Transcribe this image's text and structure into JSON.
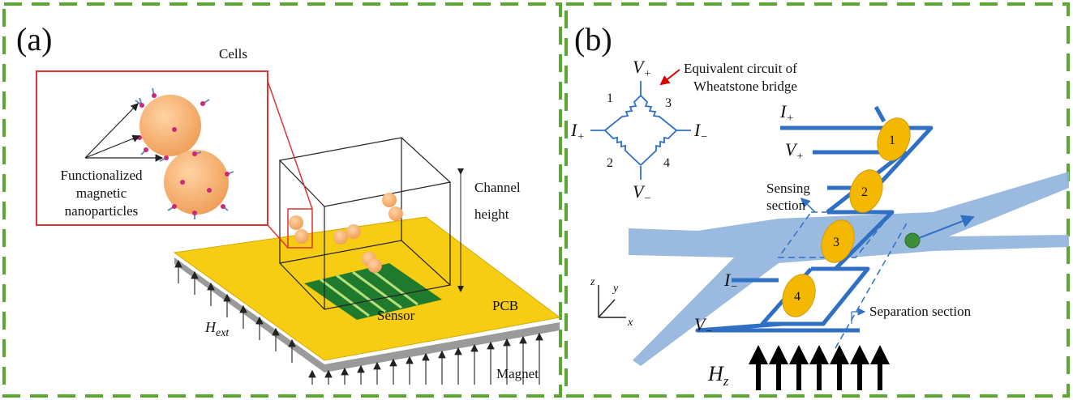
{
  "panel_a": {
    "label": "(a)",
    "cells": "Cells",
    "nanoparticles_lines": [
      "Functionalized",
      "magnetic",
      "nanoparticles"
    ],
    "channel_height_lines": [
      "Channel",
      "height"
    ],
    "sensor": "Sensor",
    "pcb": "PCB",
    "h_ext": {
      "main": "H",
      "sub": "ext"
    },
    "magnet": "Magnet"
  },
  "panel_b": {
    "label": "(b)",
    "circuit_title_lines": [
      "Equivalent circuit of",
      "Wheatstone bridge"
    ],
    "bridge": {
      "v_plus": {
        "main": "V",
        "sub": "+"
      },
      "v_minus": {
        "main": "V",
        "sub": "−"
      },
      "i_plus": {
        "main": "I",
        "sub": "+"
      },
      "i_minus": {
        "main": "I",
        "sub": "−"
      },
      "resistors": [
        "1",
        "3",
        "2",
        "4"
      ]
    },
    "device": {
      "i_plus": {
        "main": "I",
        "sub": "+"
      },
      "v_plus": {
        "main": "V",
        "sub": "+"
      },
      "i_minus": {
        "main": "I",
        "sub": "−"
      },
      "v_minus": {
        "main": "V",
        "sub": "−"
      },
      "elements": [
        "1",
        "2",
        "3",
        "4"
      ]
    },
    "sensing_section_lines": [
      "Sensing",
      "section"
    ],
    "separation_section": "Separation section",
    "h_z": {
      "main": "H",
      "sub": "z"
    },
    "axes": {
      "z": "z",
      "y": "y",
      "x": "x"
    }
  }
}
